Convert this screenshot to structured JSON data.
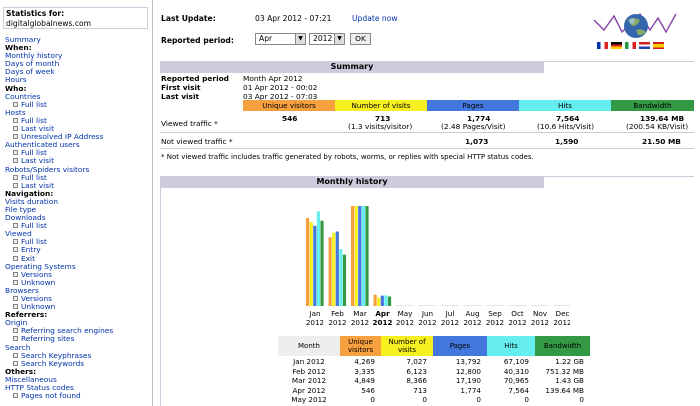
{
  "sidebar": {
    "title_label": "Statistics for:",
    "title_value": "digitalglobalnews.com",
    "rows": [
      {
        "type": "link",
        "text": "Summary"
      },
      {
        "type": "head",
        "text": "When:"
      },
      {
        "type": "link",
        "text": "Monthly history"
      },
      {
        "type": "link",
        "text": "Days of month"
      },
      {
        "type": "link",
        "text": "Days of week"
      },
      {
        "type": "link",
        "text": "Hours"
      },
      {
        "type": "head",
        "text": "Who:"
      },
      {
        "type": "link",
        "text": "Countries"
      },
      {
        "type": "sub",
        "text": "Full list"
      },
      {
        "type": "link",
        "text": "Hosts"
      },
      {
        "type": "sub",
        "text": "Full list"
      },
      {
        "type": "sub",
        "text": "Last visit"
      },
      {
        "type": "sub",
        "text": "Unresolved IP Address"
      },
      {
        "type": "link",
        "text": "Authenticated users"
      },
      {
        "type": "sub",
        "text": "Full list"
      },
      {
        "type": "sub",
        "text": "Last visit"
      },
      {
        "type": "link",
        "text": "Robots/Spiders visitors"
      },
      {
        "type": "sub",
        "text": "Full list"
      },
      {
        "type": "sub",
        "text": "Last visit"
      },
      {
        "type": "head",
        "text": "Navigation:"
      },
      {
        "type": "link",
        "text": "Visits duration"
      },
      {
        "type": "link",
        "text": "File type"
      },
      {
        "type": "link",
        "text": "Downloads"
      },
      {
        "type": "sub",
        "text": "Full list"
      },
      {
        "type": "link",
        "text": "Viewed"
      },
      {
        "type": "sub",
        "text": "Full list"
      },
      {
        "type": "sub",
        "text": "Entry"
      },
      {
        "type": "sub",
        "text": "Exit"
      },
      {
        "type": "link",
        "text": "Operating Systems"
      },
      {
        "type": "sub",
        "text": "Versions"
      },
      {
        "type": "sub",
        "text": "Unknown"
      },
      {
        "type": "link",
        "text": "Browsers"
      },
      {
        "type": "sub",
        "text": "Versions"
      },
      {
        "type": "sub",
        "text": "Unknown"
      },
      {
        "type": "head",
        "text": "Referrers:"
      },
      {
        "type": "link",
        "text": "Origin"
      },
      {
        "type": "sub",
        "text": "Referring search engines"
      },
      {
        "type": "sub",
        "text": "Referring sites"
      },
      {
        "type": "link",
        "text": "Search"
      },
      {
        "type": "sub",
        "text": "Search Keyphrases"
      },
      {
        "type": "sub",
        "text": "Search Keywords"
      },
      {
        "type": "head",
        "text": "Others:"
      },
      {
        "type": "link",
        "text": "Miscellaneous"
      },
      {
        "type": "link",
        "text": "HTTP Status codes"
      },
      {
        "type": "sub",
        "text": "Pages not found"
      }
    ]
  },
  "header": {
    "last_update_label": "Last Update:",
    "last_update_value": "03 Apr 2012 - 07:21",
    "update_now": "Update now",
    "reported_period_label": "Reported period:",
    "month_value": "Apr",
    "year_value": "2012",
    "ok_label": "OK"
  },
  "summary": {
    "title": "Summary",
    "reported_period_label": "Reported period",
    "reported_period_value": "Month Apr 2012",
    "first_visit_label": "First visit",
    "first_visit_value": "01 Apr 2012 - 00:02",
    "last_visit_label": "Last visit",
    "last_visit_value": "03 Apr 2012 - 07:03",
    "columns": [
      "Unique visitors",
      "Number of visits",
      "Pages",
      "Hits",
      "Bandwidth"
    ],
    "viewed_label": "Viewed traffic *",
    "viewed": {
      "unique": "546",
      "visits": "713",
      "visits_sub": "(1.3 visits/visitor)",
      "pages": "1,774",
      "pages_sub": "(2.48 Pages/Visit)",
      "hits": "7,564",
      "hits_sub": "(10.6 Hits/Visit)",
      "bandwidth": "139.64 MB",
      "bandwidth_sub": "(200.54 KB/Visit)"
    },
    "not_viewed_label": "Not viewed traffic *",
    "not_viewed": {
      "pages": "1,073",
      "hits": "1,590",
      "bandwidth": "21.50 MB"
    },
    "footnote": "* Not viewed traffic includes traffic generated by robots, worms, or replies with special HTTP status codes."
  },
  "colors": {
    "unique": "#f7a040",
    "visits": "#f7f020",
    "pages": "#4477dd",
    "hits": "#66eeee",
    "bandwidth": "#339944",
    "section": "#ccccdd"
  },
  "history": {
    "title": "Monthly history",
    "table_columns": [
      "Month",
      "Unique visitors",
      "Number of visits",
      "Pages",
      "Hits",
      "Bandwidth"
    ],
    "rows": [
      {
        "month": "Jan 2012",
        "unique": "4,269",
        "visits": "7,027",
        "pages": "13,792",
        "hits": "67,109",
        "bandwidth": "1.22 GB"
      },
      {
        "month": "Feb 2012",
        "unique": "3,335",
        "visits": "6,123",
        "pages": "12,800",
        "hits": "40,310",
        "bandwidth": "751.32 MB"
      },
      {
        "month": "Mar 2012",
        "unique": "4,849",
        "visits": "8,366",
        "pages": "17,190",
        "hits": "70,965",
        "bandwidth": "1.43 GB"
      },
      {
        "month": "Apr 2012",
        "unique": "546",
        "visits": "713",
        "pages": "1,774",
        "hits": "7,564",
        "bandwidth": "139.64 MB"
      },
      {
        "month": "May 2012",
        "unique": "0",
        "visits": "0",
        "pages": "0",
        "hits": "0",
        "bandwidth": "0"
      }
    ]
  },
  "chart_data": {
    "type": "bar",
    "categories": [
      "Jan 2012",
      "Feb 2012",
      "Mar 2012",
      "Apr 2012",
      "May 2012",
      "Jun 2012",
      "Jul 2012",
      "Aug 2012",
      "Sep 2012",
      "Oct 2012",
      "Nov 2012",
      "Dec 2012"
    ],
    "tick_top": [
      "Jan",
      "Feb",
      "Mar",
      "Apr",
      "May",
      "Jun",
      "Jul",
      "Aug",
      "Sep",
      "Oct",
      "Nov",
      "Dec"
    ],
    "tick_bottom": [
      "2012",
      "2012",
      "2012",
      "2012",
      "2012",
      "2012",
      "2012",
      "2012",
      "2012",
      "2012",
      "2012",
      "2012"
    ],
    "highlight_index": 3,
    "series": [
      {
        "name": "Unique visitors",
        "color": "#f7a040",
        "values": [
          4269,
          3335,
          4849,
          546,
          0,
          0,
          0,
          0,
          0,
          0,
          0,
          0
        ]
      },
      {
        "name": "Number of visits",
        "color": "#f7f020",
        "values": [
          7027,
          6123,
          8366,
          713,
          0,
          0,
          0,
          0,
          0,
          0,
          0,
          0
        ]
      },
      {
        "name": "Pages",
        "color": "#4477dd",
        "values": [
          13792,
          12800,
          17190,
          1774,
          0,
          0,
          0,
          0,
          0,
          0,
          0,
          0
        ]
      },
      {
        "name": "Hits",
        "color": "#66eeee",
        "values": [
          67109,
          40310,
          70965,
          7564,
          0,
          0,
          0,
          0,
          0,
          0,
          0,
          0
        ]
      },
      {
        "name": "Bandwidth",
        "color": "#339944",
        "values": [
          1249.28,
          751.32,
          1464.32,
          139.64,
          0,
          0,
          0,
          0,
          0,
          0,
          0,
          0
        ]
      }
    ]
  }
}
